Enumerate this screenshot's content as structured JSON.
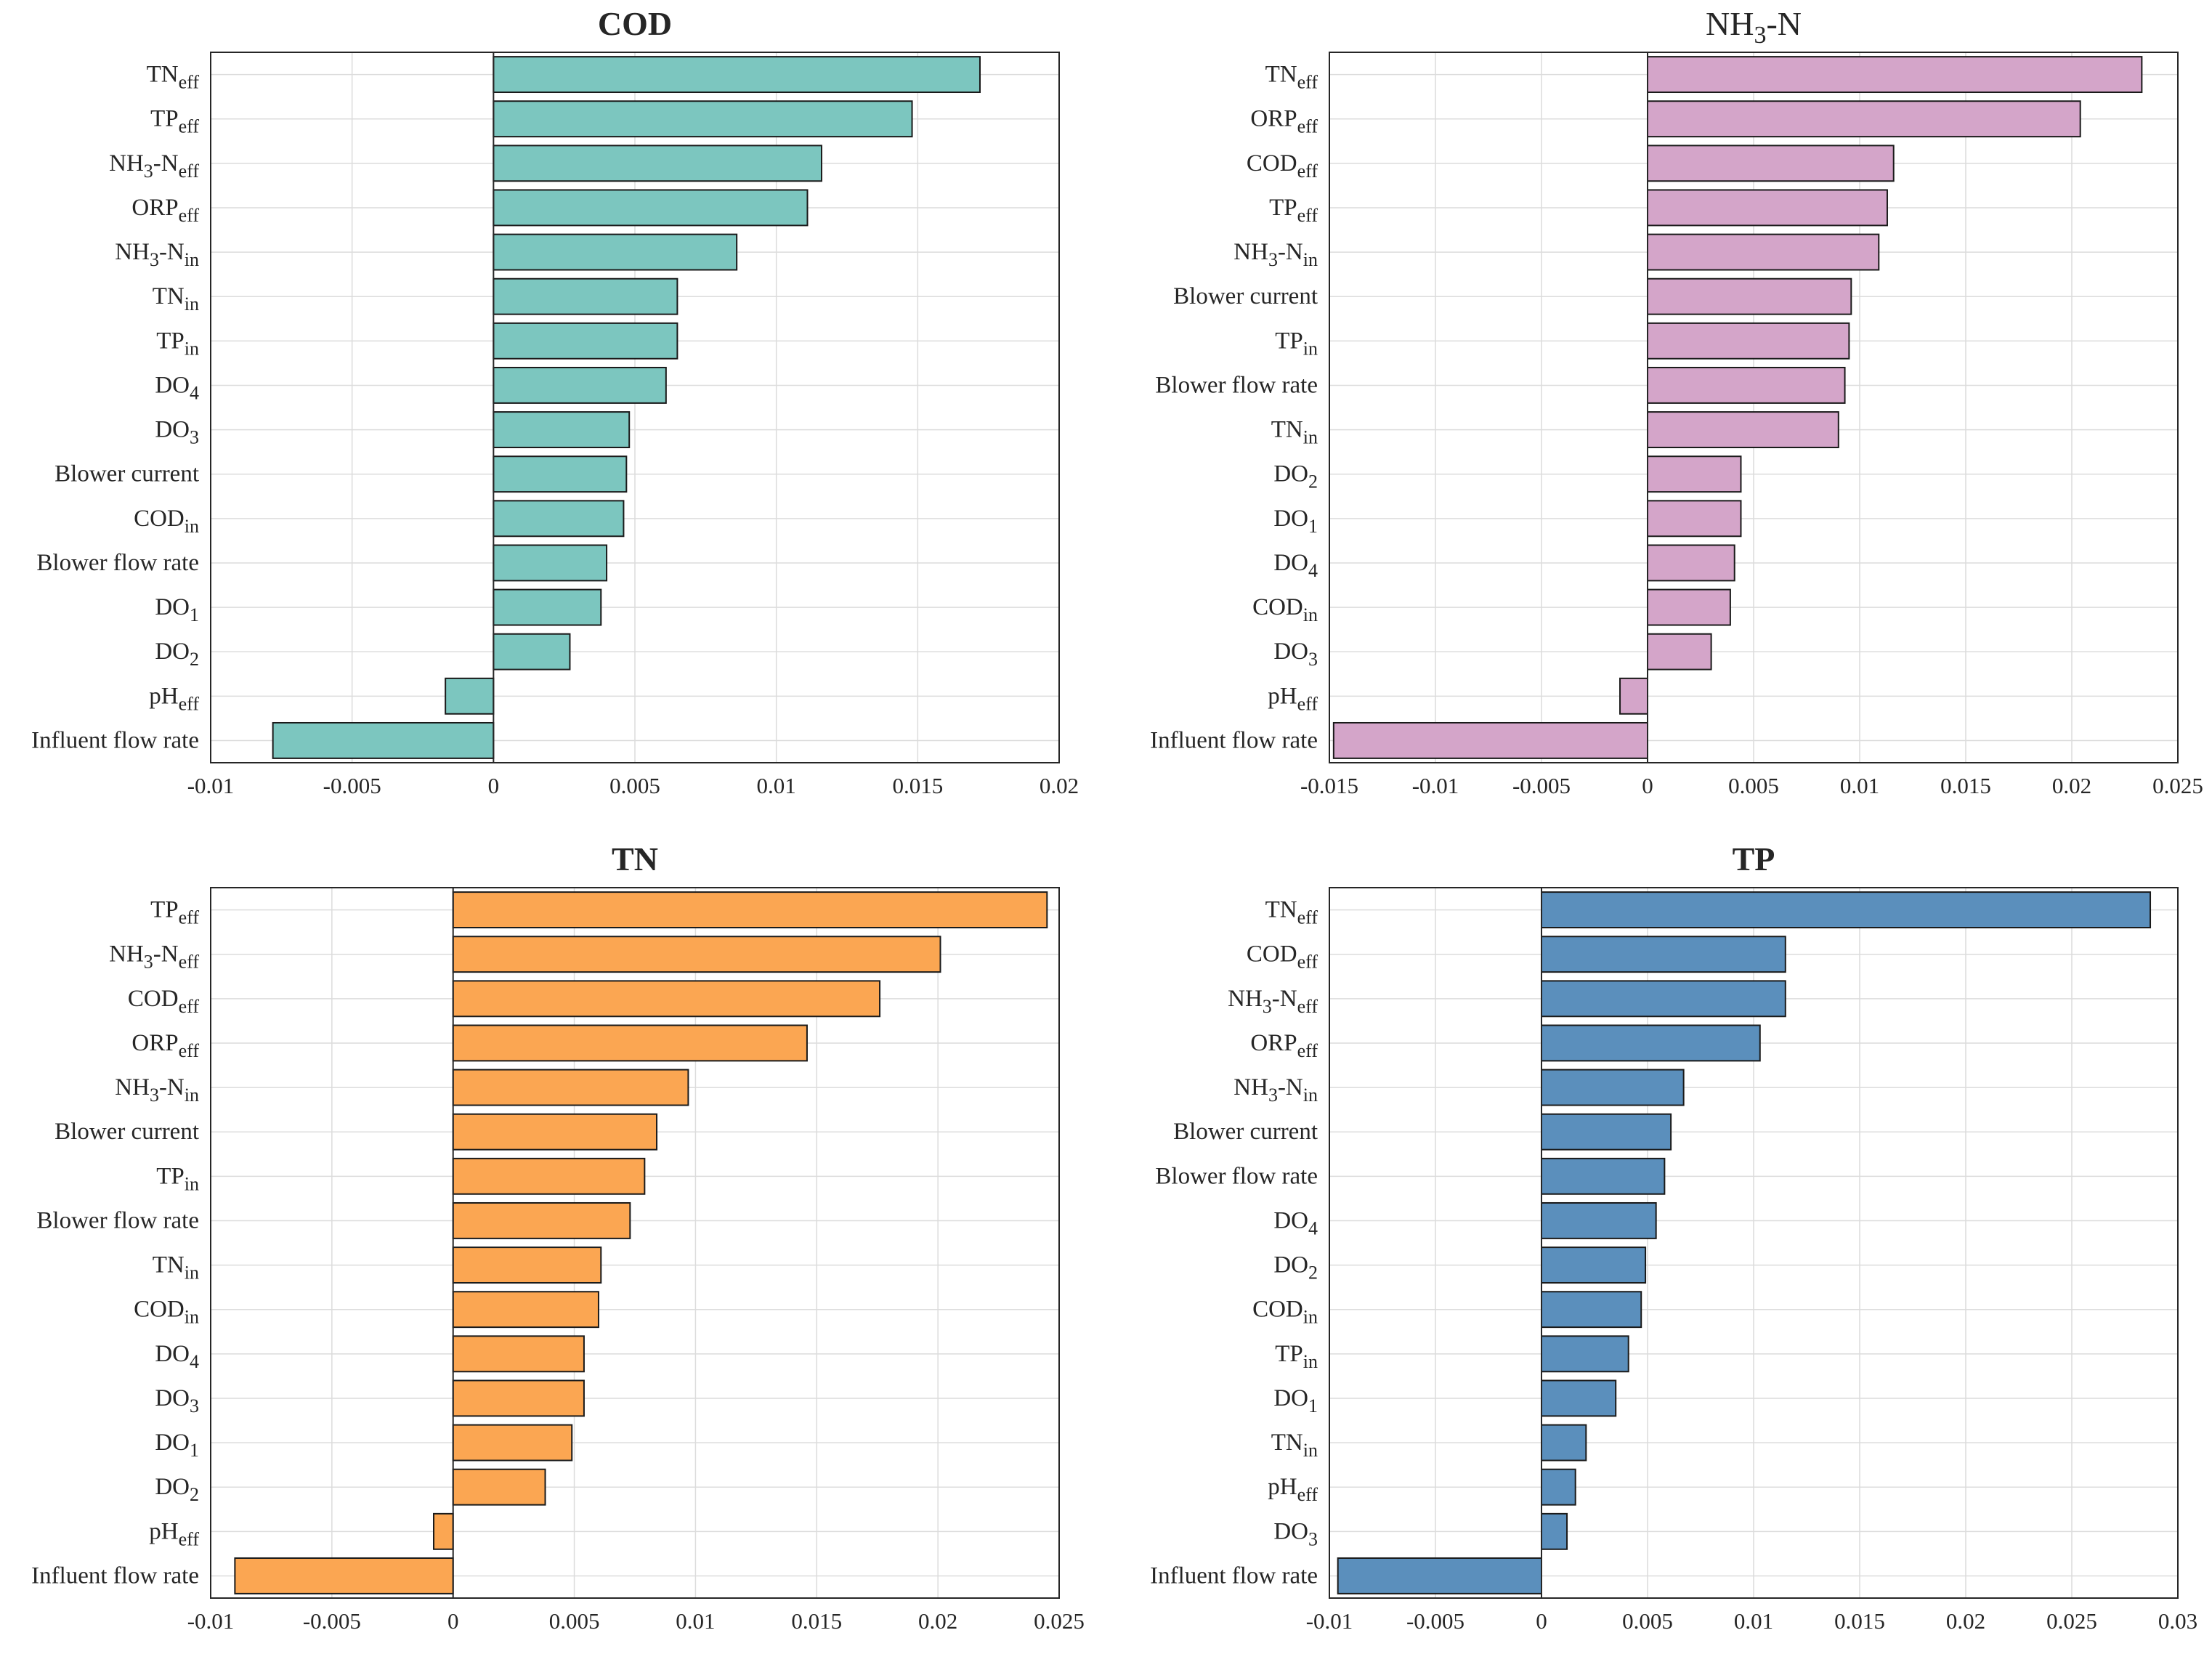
{
  "chart_data": [
    {
      "type": "bar",
      "orientation": "horizontal",
      "title": "COD",
      "title_parts": [
        {
          "t": "COD",
          "s": ""
        }
      ],
      "color": "#7cc6bf",
      "xlim": [
        -0.01,
        0.02
      ],
      "xticks": [
        -0.01,
        -0.005,
        0,
        0.005,
        0.01,
        0.015,
        0.02
      ],
      "xtick_labels": [
        "-0.01",
        "-0.005",
        "0",
        "0.005",
        "0.01",
        "0.015",
        "0.02"
      ],
      "categories": [
        {
          "base": "TN",
          "sub": "eff"
        },
        {
          "base": "TP",
          "sub": "eff"
        },
        {
          "base": "NH3-N",
          "sub": "eff"
        },
        {
          "base": "ORP",
          "sub": "eff"
        },
        {
          "base": "NH3-N",
          "sub": "in"
        },
        {
          "base": "TN",
          "sub": "in"
        },
        {
          "base": "TP",
          "sub": "in"
        },
        {
          "base": "DO",
          "sub": "4"
        },
        {
          "base": "DO",
          "sub": "3"
        },
        {
          "base": "Blower current",
          "sub": ""
        },
        {
          "base": "COD",
          "sub": "in"
        },
        {
          "base": "Blower flow rate",
          "sub": ""
        },
        {
          "base": "DO",
          "sub": "1"
        },
        {
          "base": "DO",
          "sub": "2"
        },
        {
          "base": "pH",
          "sub": "eff"
        },
        {
          "base": "Influent flow rate",
          "sub": ""
        }
      ],
      "values": [
        0.0172,
        0.0148,
        0.0116,
        0.0111,
        0.0086,
        0.0065,
        0.0065,
        0.0061,
        0.0048,
        0.0047,
        0.0046,
        0.004,
        0.0038,
        0.0027,
        -0.0017,
        -0.0078
      ]
    },
    {
      "type": "bar",
      "orientation": "horizontal",
      "title": "NH3-N",
      "title_parts": [
        {
          "t": "NH",
          "s": ""
        },
        {
          "t": "",
          "s": "3"
        },
        {
          "t": "-N",
          "s": ""
        }
      ],
      "color": "#d4a5c9",
      "xlim": [
        -0.015,
        0.025
      ],
      "xticks": [
        -0.015,
        -0.01,
        -0.005,
        0,
        0.005,
        0.01,
        0.015,
        0.02,
        0.025
      ],
      "xtick_labels": [
        "-0.015",
        "-0.01",
        "-0.005",
        "0",
        "0.005",
        "0.01",
        "0.015",
        "0.02",
        "0.025"
      ],
      "categories": [
        {
          "base": "TN",
          "sub": "eff"
        },
        {
          "base": "ORP",
          "sub": "eff"
        },
        {
          "base": "COD",
          "sub": "eff"
        },
        {
          "base": "TP",
          "sub": "eff"
        },
        {
          "base": "NH3-N",
          "sub": "in"
        },
        {
          "base": "Blower current",
          "sub": ""
        },
        {
          "base": "TP",
          "sub": "in"
        },
        {
          "base": "Blower flow rate",
          "sub": ""
        },
        {
          "base": "TN",
          "sub": "in"
        },
        {
          "base": "DO",
          "sub": "2"
        },
        {
          "base": "DO",
          "sub": "1"
        },
        {
          "base": "DO",
          "sub": "4"
        },
        {
          "base": "COD",
          "sub": "in"
        },
        {
          "base": "DO",
          "sub": "3"
        },
        {
          "base": "pH",
          "sub": "eff"
        },
        {
          "base": "Influent flow rate",
          "sub": ""
        }
      ],
      "values": [
        0.0233,
        0.0204,
        0.0116,
        0.0113,
        0.0109,
        0.0096,
        0.0095,
        0.0093,
        0.009,
        0.0044,
        0.0044,
        0.0041,
        0.0039,
        0.003,
        -0.0013,
        -0.0148
      ]
    },
    {
      "type": "bar",
      "orientation": "horizontal",
      "title": "TN",
      "title_parts": [
        {
          "t": "TN",
          "s": ""
        }
      ],
      "color": "#fba652",
      "xlim": [
        -0.01,
        0.025
      ],
      "xticks": [
        -0.01,
        -0.005,
        0,
        0.005,
        0.01,
        0.015,
        0.02,
        0.025
      ],
      "xtick_labels": [
        "-0.01",
        "-0.005",
        "0",
        "0.005",
        "0.01",
        "0.015",
        "0.02",
        "0.025"
      ],
      "categories": [
        {
          "base": "TP",
          "sub": "eff"
        },
        {
          "base": "NH3-N",
          "sub": "eff"
        },
        {
          "base": "COD",
          "sub": "eff"
        },
        {
          "base": "ORP",
          "sub": "eff"
        },
        {
          "base": "NH3-N",
          "sub": "in"
        },
        {
          "base": "Blower current",
          "sub": ""
        },
        {
          "base": "TP",
          "sub": "in"
        },
        {
          "base": "Blower flow rate",
          "sub": ""
        },
        {
          "base": "TN",
          "sub": "in"
        },
        {
          "base": "COD",
          "sub": "in"
        },
        {
          "base": "DO",
          "sub": "4"
        },
        {
          "base": "DO",
          "sub": "3"
        },
        {
          "base": "DO",
          "sub": "1"
        },
        {
          "base": "DO",
          "sub": "2"
        },
        {
          "base": "pH",
          "sub": "eff"
        },
        {
          "base": "Influent flow rate",
          "sub": ""
        }
      ],
      "values": [
        0.0245,
        0.0201,
        0.0176,
        0.0146,
        0.0097,
        0.0084,
        0.0079,
        0.0073,
        0.0061,
        0.006,
        0.0054,
        0.0054,
        0.0049,
        0.0038,
        -0.0008,
        -0.009
      ]
    },
    {
      "type": "bar",
      "orientation": "horizontal",
      "title": "TP",
      "title_parts": [
        {
          "t": "TP",
          "s": ""
        }
      ],
      "color": "#5b8fbc",
      "xlim": [
        -0.01,
        0.03
      ],
      "xticks": [
        -0.01,
        -0.005,
        0,
        0.005,
        0.01,
        0.015,
        0.02,
        0.025,
        0.03
      ],
      "xtick_labels": [
        "-0.01",
        "-0.005",
        "0",
        "0.005",
        "0.01",
        "0.015",
        "0.02",
        "0.025",
        "0.03"
      ],
      "categories": [
        {
          "base": "TN",
          "sub": "eff"
        },
        {
          "base": "COD",
          "sub": "eff"
        },
        {
          "base": "NH3-N",
          "sub": "eff"
        },
        {
          "base": "ORP",
          "sub": "eff"
        },
        {
          "base": "NH3-N",
          "sub": "in"
        },
        {
          "base": "Blower current",
          "sub": ""
        },
        {
          "base": "Blower flow rate",
          "sub": ""
        },
        {
          "base": "DO",
          "sub": "4"
        },
        {
          "base": "DO",
          "sub": "2"
        },
        {
          "base": "COD",
          "sub": "in"
        },
        {
          "base": "TP",
          "sub": "in"
        },
        {
          "base": "DO",
          "sub": "1"
        },
        {
          "base": "TN",
          "sub": "in"
        },
        {
          "base": "pH",
          "sub": "eff"
        },
        {
          "base": "DO",
          "sub": "3"
        },
        {
          "base": "Influent flow rate",
          "sub": ""
        }
      ],
      "values": [
        0.0287,
        0.0115,
        0.0115,
        0.0103,
        0.0067,
        0.0061,
        0.0058,
        0.0054,
        0.0049,
        0.0047,
        0.0041,
        0.0035,
        0.0021,
        0.0016,
        0.0012,
        -0.0096
      ]
    }
  ]
}
